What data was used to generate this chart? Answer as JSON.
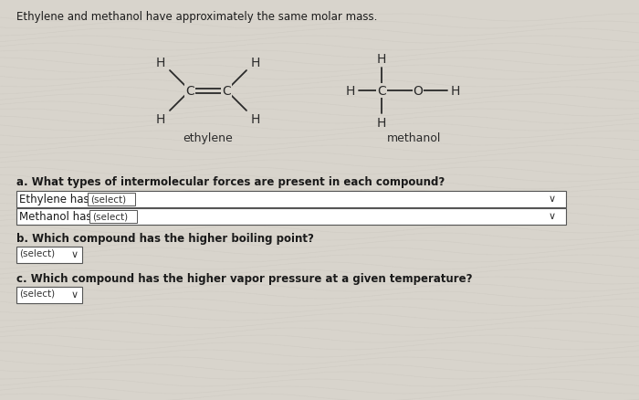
{
  "title": "Ethylene and methanol have approximately the same molar mass.",
  "bg_color": "#d8d4cc",
  "text_color": "#1a1a1a",
  "title_fontsize": 8.5,
  "body_fontsize": 8.5,
  "mol_fontsize": 10,
  "questions": [
    "a. What types of intermolecular forces are present in each compound?",
    "b. Which compound has the higher boiling point?",
    "c. Which compound has the higher vapor pressure at a given temperature?"
  ],
  "ethylene_label": "ethylene",
  "methanol_label": "methanol",
  "dropdown_text": "(select)",
  "ethylene_has": "Ethylene has",
  "methanol_has": "Methanol has"
}
